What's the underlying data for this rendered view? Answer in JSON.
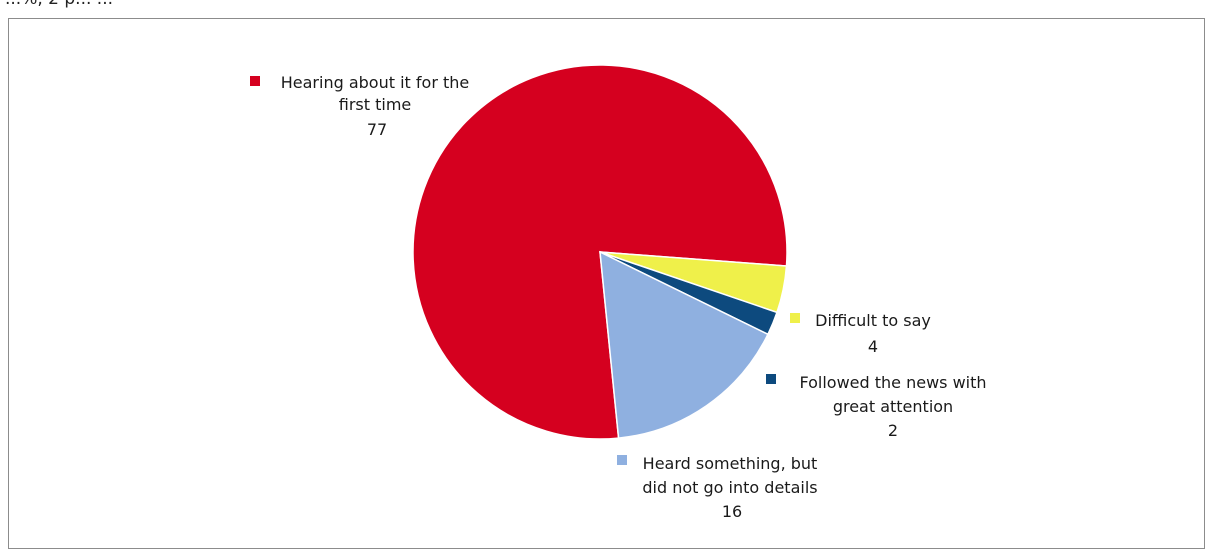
{
  "header_text": "...%, 2 p... ...",
  "chart_data": {
    "type": "pie",
    "slices": [
      {
        "label": [
          "Hearing about it for the",
          "first time"
        ],
        "value": 77,
        "color": "#d5001f"
      },
      {
        "label": [
          "Difficult to say"
        ],
        "value": 4,
        "color": "#eff04a"
      },
      {
        "label": [
          "Followed the news with",
          "great attention"
        ],
        "value": 2,
        "color": "#0d4a7e"
      },
      {
        "label": [
          "Heard something, but",
          "did not go into details"
        ],
        "value": 16,
        "color": "#8fb0e0"
      }
    ]
  }
}
